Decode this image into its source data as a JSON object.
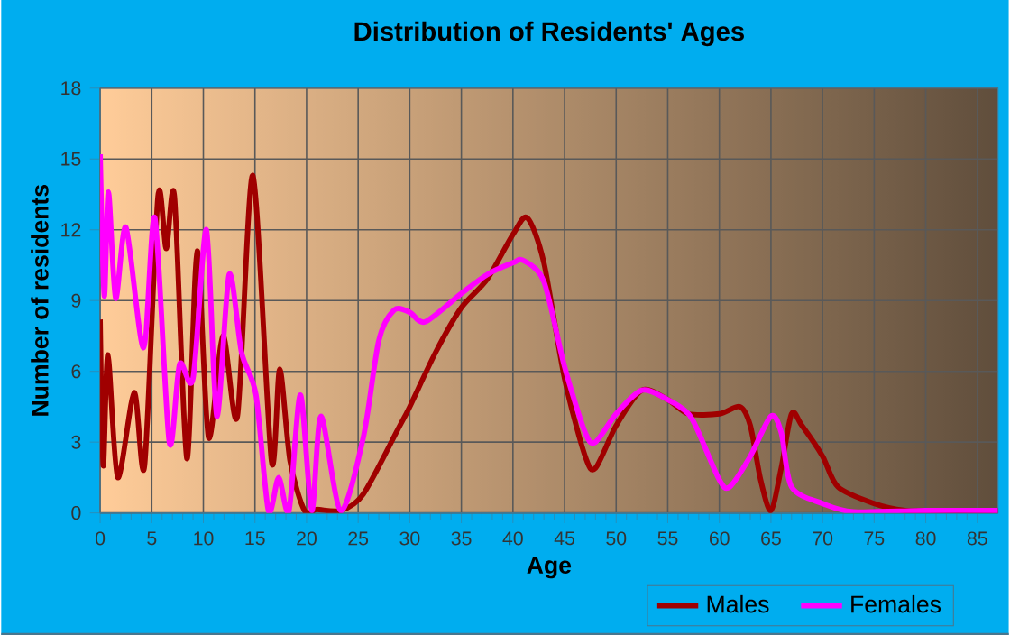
{
  "chart_data": {
    "type": "line",
    "title": "Distribution of Residents' Ages",
    "xlabel": "Age",
    "ylabel": "Number of residents",
    "xlim": [
      0,
      87
    ],
    "xticks": [
      0,
      5,
      10,
      15,
      20,
      25,
      30,
      35,
      40,
      45,
      50,
      55,
      60,
      65,
      70,
      75,
      80,
      85
    ],
    "ylim": [
      0,
      18
    ],
    "yticks": [
      0,
      3,
      6,
      9,
      12,
      15,
      18
    ],
    "grid": true,
    "legend": "bottom right",
    "series": [
      {
        "name": "Males",
        "color": "#a00000",
        "x": [
          0,
          0.3,
          0.75,
          1.7,
          3.3,
          4.3,
          5.6,
          6.4,
          7.2,
          8.4,
          9.4,
          10.5,
          11.9,
          13.3,
          14.8,
          16.6,
          17.4,
          18.4,
          19.8,
          21,
          23.3,
          25.5,
          28.8,
          30,
          32.5,
          35,
          37.5,
          40,
          41.4,
          43,
          45,
          47,
          48,
          50,
          52.5,
          55,
          57,
          60,
          62,
          63,
          64,
          65,
          66,
          67,
          68,
          70,
          71.5,
          75,
          78,
          80,
          87
        ],
        "values": [
          8.2,
          2.0,
          6.7,
          1.5,
          5.1,
          2.0,
          13.4,
          11.2,
          13.4,
          2.3,
          11.1,
          3.2,
          7.5,
          4.1,
          14.3,
          2.2,
          6.1,
          2.2,
          0.1,
          0.15,
          0.1,
          0.8,
          3.5,
          4.5,
          6.8,
          8.7,
          9.9,
          11.8,
          12.5,
          10.6,
          5.7,
          2.4,
          1.9,
          3.7,
          5.2,
          4.8,
          4.2,
          4.2,
          4.5,
          3.7,
          1.4,
          0.1,
          1.9,
          4.2,
          3.7,
          2.4,
          1.1,
          0.4,
          0.1,
          0.1,
          0.1
        ]
      },
      {
        "name": "Females",
        "color": "#ff00ff",
        "x": [
          0,
          0.4,
          0.8,
          1.5,
          2.5,
          4.2,
          5.3,
          6.7,
          7.7,
          9,
          10.3,
          11.3,
          12.5,
          13.7,
          15.1,
          16.3,
          17.3,
          18.3,
          19.4,
          20.5,
          21.4,
          23.3,
          25.5,
          27,
          28.5,
          30,
          31.5,
          35,
          37.5,
          40,
          41,
          43,
          45,
          47,
          48,
          50,
          52.5,
          55,
          57,
          58,
          60,
          61,
          63,
          65,
          66,
          67,
          70,
          73,
          80,
          87
        ],
        "values": [
          15.2,
          9.2,
          13.6,
          9.1,
          12.1,
          7.0,
          12.5,
          3.0,
          6.3,
          5.7,
          12.0,
          4.1,
          10.1,
          6.8,
          5.0,
          0.1,
          1.5,
          0.1,
          5.0,
          0.1,
          4.1,
          0.1,
          3.2,
          7.3,
          8.6,
          8.5,
          8.1,
          9.3,
          10.1,
          10.6,
          10.7,
          9.8,
          6.2,
          3.4,
          3.0,
          4.2,
          5.2,
          4.8,
          4.2,
          3.4,
          1.4,
          1.1,
          2.4,
          4.1,
          3.4,
          1.1,
          0.4,
          0.05,
          0.1,
          0.1
        ]
      }
    ]
  }
}
